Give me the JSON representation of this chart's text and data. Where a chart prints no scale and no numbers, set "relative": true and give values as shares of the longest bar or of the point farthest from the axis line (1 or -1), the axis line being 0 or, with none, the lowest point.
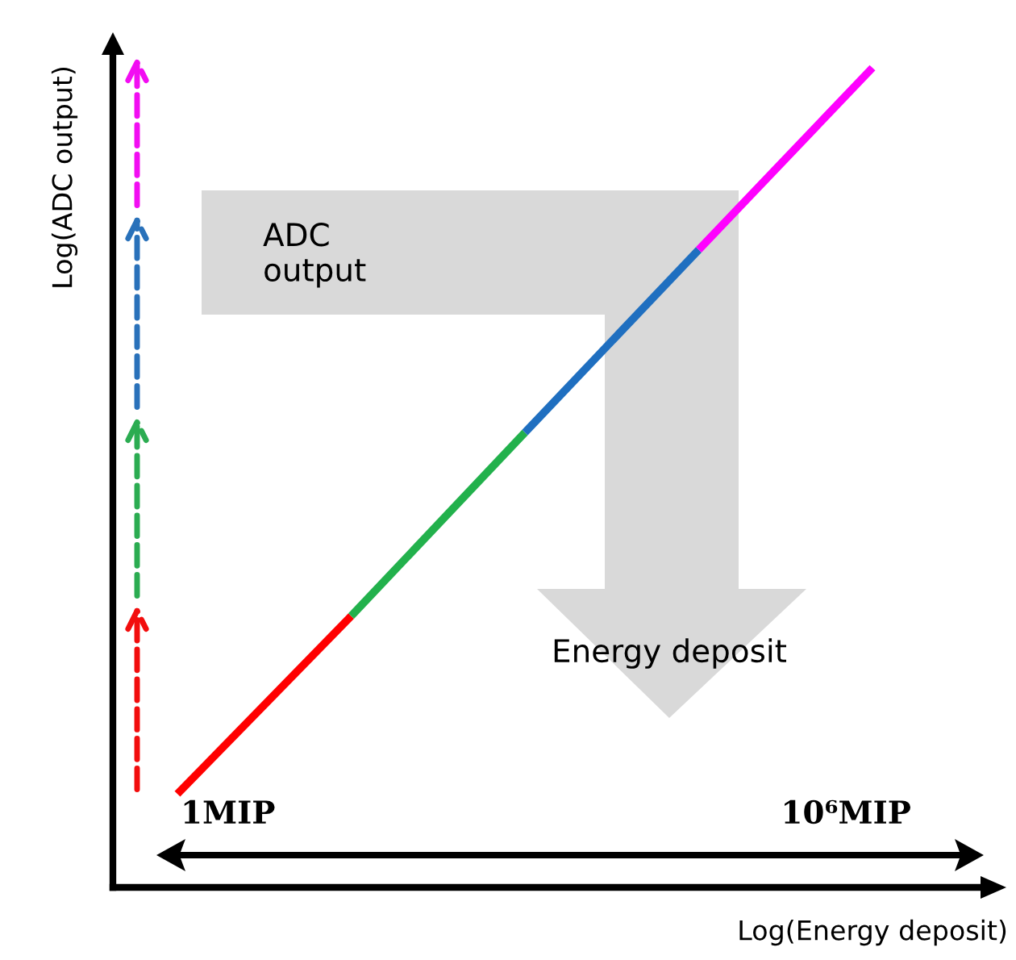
{
  "chart_data": {
    "type": "line",
    "relative": true,
    "xlabel": "Log(Energy deposit)",
    "ylabel": "Log(ADC output)",
    "marker": "none",
    "line_style": "solid",
    "categories": [
      null,
      null,
      null,
      null,
      null
    ],
    "series": [
      {
        "color": "#ff0000",
        "values": [
          0.114,
          0.331,
          null,
          null,
          null
        ]
      },
      {
        "color": "#22b14c",
        "values": [
          null,
          0.331,
          0.555,
          null,
          null
        ]
      },
      {
        "color": "#1f6fc0",
        "values": [
          null,
          null,
          0.555,
          0.778,
          null
        ]
      },
      {
        "color": "#ff00ff",
        "values": [
          null,
          null,
          null,
          0.778,
          1.0
        ]
      }
    ],
    "annotations": [
      "ADC\noutput",
      "Energy deposit",
      "1MIP",
      "10⁶MIP"
    ]
  }
}
